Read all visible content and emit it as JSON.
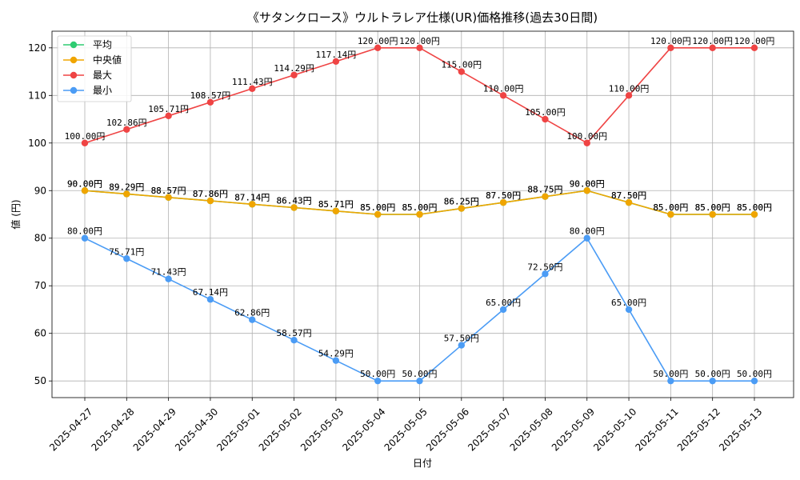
{
  "chart_data": {
    "type": "line",
    "title": "《サタンクロース》ウルトラレア仕様(UR)価格推移(過去30日間)",
    "xlabel": "日付",
    "ylabel": "値 (円)",
    "ylim": [
      46.5,
      123.5
    ],
    "y_ticks": [
      50,
      60,
      70,
      80,
      90,
      100,
      110,
      120
    ],
    "grid": true,
    "legend_position": "top-left",
    "categories": [
      "2025-04-27",
      "2025-04-28",
      "2025-04-29",
      "2025-04-30",
      "2025-05-01",
      "2025-05-02",
      "2025-05-03",
      "2025-05-04",
      "2025-05-05",
      "2025-05-06",
      "2025-05-07",
      "2025-05-08",
      "2025-05-09",
      "2025-05-10",
      "2025-05-11",
      "2025-05-12",
      "2025-05-13"
    ],
    "series": [
      {
        "name": "平均",
        "color": "#2ecc71",
        "values": [
          90,
          89.29,
          88.57,
          87.86,
          87.14,
          86.43,
          85.71,
          85,
          85,
          86.25,
          87.5,
          88.75,
          90,
          87.5,
          85,
          85,
          85
        ],
        "labels": [
          "90.00円",
          "89.29円",
          "88.57円",
          "87.86円",
          "87.14円",
          "86.43円",
          "85.71円",
          "85.00円",
          "85.00円",
          "86.25円",
          "87.50円",
          "88.75円",
          "90.00円",
          "87.50円",
          "85.00円",
          "85.00円",
          "85.00円"
        ]
      },
      {
        "name": "中央値",
        "color": "#f0a500",
        "values": [
          90,
          89.29,
          88.57,
          87.86,
          87.14,
          86.43,
          85.71,
          85,
          85,
          86.25,
          87.5,
          88.75,
          90,
          87.5,
          85,
          85,
          85
        ],
        "labels": [
          "90.00円",
          "89.29円",
          "88.57円",
          "87.86円",
          "87.14円",
          "86.43円",
          "85.71円",
          "85.00円",
          "85.00円",
          "86.25円",
          "87.50円",
          "88.75円",
          "90.00円",
          "87.50円",
          "85.00円",
          "85.00円",
          "85.00円"
        ]
      },
      {
        "name": "最大",
        "color": "#ef4444",
        "values": [
          100,
          102.86,
          105.71,
          108.57,
          111.43,
          114.29,
          117.14,
          120,
          120,
          115,
          110,
          105,
          100,
          110,
          120,
          120,
          120
        ],
        "labels": [
          "100.00円",
          "102.86円",
          "105.71円",
          "108.57円",
          "111.43円",
          "114.29円",
          "117.14円",
          "120.00円",
          "120.00円",
          "115.00円",
          "110.00円",
          "105.00円",
          "100.00円",
          "110.00円",
          "120.00円",
          "120.00円",
          "120.00円"
        ]
      },
      {
        "name": "最小",
        "color": "#4b9cf5",
        "values": [
          80,
          75.71,
          71.43,
          67.14,
          62.86,
          58.57,
          54.29,
          50,
          50,
          57.5,
          65,
          72.5,
          80,
          65,
          50,
          50,
          50
        ],
        "labels": [
          "80.00円",
          "75.71円",
          "71.43円",
          "67.14円",
          "62.86円",
          "58.57円",
          "54.29円",
          "50.00円",
          "50.00円",
          "57.50円",
          "65.00円",
          "72.50円",
          "80.00円",
          "65.00円",
          "50.00円",
          "50.00円",
          "50.00円"
        ]
      }
    ]
  }
}
